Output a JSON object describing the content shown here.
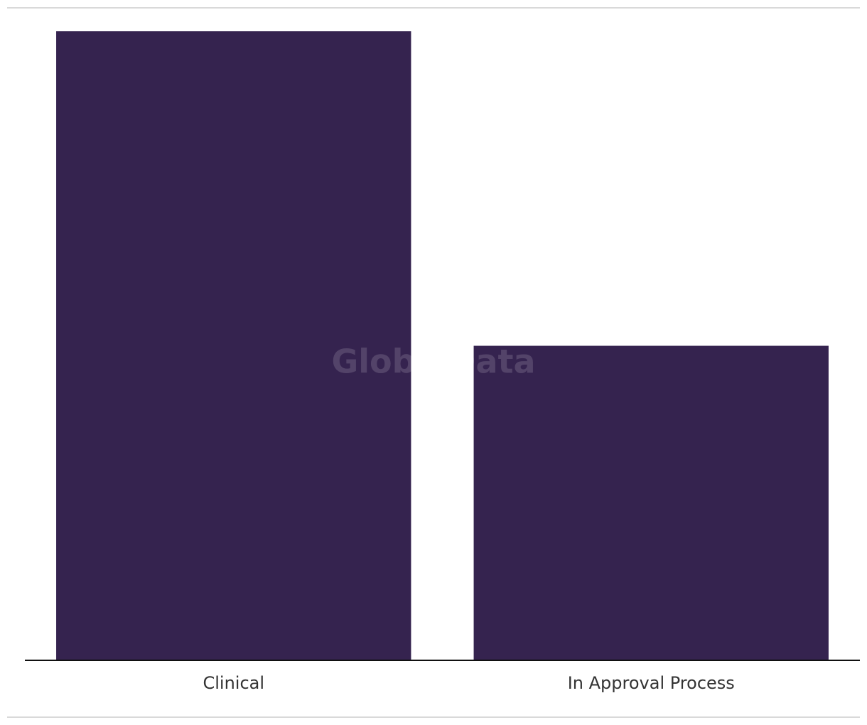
{
  "chart_data": {
    "type": "bar",
    "categories": [
      "Clinical",
      "In Approval Process"
    ],
    "values": [
      2,
      1
    ],
    "color": "#35234f",
    "watermark": "GlobalData"
  }
}
